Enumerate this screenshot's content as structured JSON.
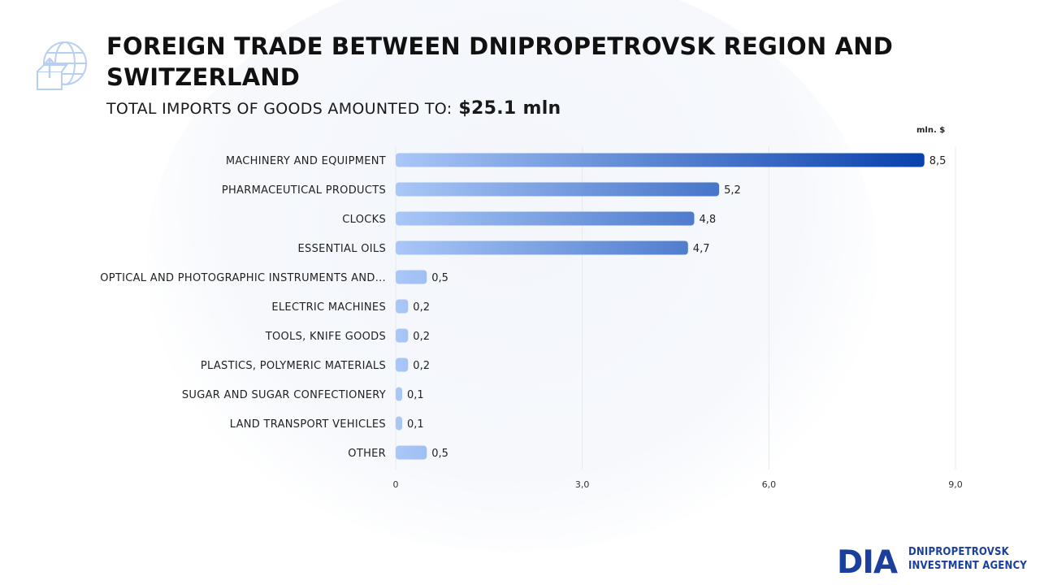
{
  "header": {
    "title": "FOREIGN TRADE BETWEEN DNIPROPETROVSK REGION AND SWITZERLAND",
    "subtitle_label": "TOTAL IMPORTS OF GOODS AMOUNTED TO:",
    "subtitle_value": "$25.1  mln"
  },
  "unit_label": "mln. $",
  "logo": {
    "mark": "DIA",
    "line1": "DNIPROPETROVSK",
    "line2": "INVESTMENT AGENCY"
  },
  "icons": {
    "header": "globe-box-arrow-icon"
  },
  "colors": {
    "bar_light": "#a9c7f7",
    "bar_dark": "#0b43ad",
    "title": "#111111",
    "logo": "#1a3f9c"
  },
  "chart_data": {
    "type": "bar",
    "orientation": "horizontal",
    "categories": [
      "MACHINERY AND EQUIPMENT",
      "PHARMACEUTICAL PRODUCTS",
      "CLOCKS",
      "ESSENTIAL OILS",
      "OPTICAL AND PHOTOGRAPHIC INSTRUMENTS AND...",
      "ELECTRIC MACHINES",
      "TOOLS, KNIFE GOODS",
      "PLASTICS, POLYMERIC MATERIALS",
      "SUGAR AND SUGAR CONFECTIONERY",
      "LAND TRANSPORT VEHICLES",
      "OTHER"
    ],
    "values": [
      8.5,
      5.2,
      4.8,
      4.7,
      0.5,
      0.2,
      0.2,
      0.2,
      0.1,
      0.1,
      0.5
    ],
    "value_labels": [
      "8,5",
      "5,2",
      "4,8",
      "4,7",
      "0,5",
      "0,2",
      "0,2",
      "0,2",
      "0,1",
      "0,1",
      "0,5"
    ],
    "x_ticks": [
      0,
      3,
      6,
      9
    ],
    "x_tick_labels": [
      "0",
      "3,0",
      "6,0",
      "9,0"
    ],
    "xlim": [
      0,
      9
    ],
    "grid": true
  }
}
